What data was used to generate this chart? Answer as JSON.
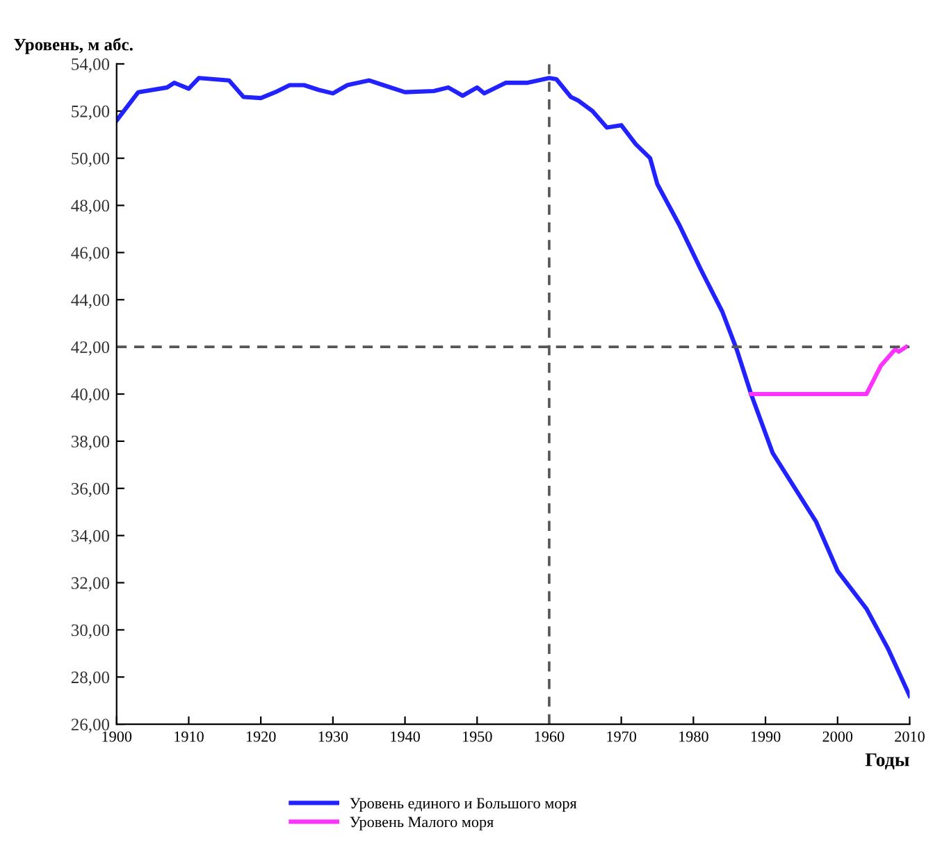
{
  "chart_data": {
    "type": "line",
    "ylabel": "Уровень, м абс.",
    "xlabel": "Годы",
    "xlim": [
      1900,
      2010
    ],
    "xticks": [
      1900,
      1910,
      1920,
      1930,
      1940,
      1950,
      1960,
      1970,
      1980,
      1990,
      2000,
      2010
    ],
    "ylim": [
      26,
      54
    ],
    "yticks": [
      {
        "value": 26,
        "label": "26,00"
      },
      {
        "value": 28,
        "label": "28,00"
      },
      {
        "value": 30,
        "label": "30,00"
      },
      {
        "value": 32,
        "label": "32,00"
      },
      {
        "value": 34,
        "label": "34,00"
      },
      {
        "value": 36,
        "label": "36,00"
      },
      {
        "value": 38,
        "label": "38,00"
      },
      {
        "value": 40,
        "label": "40,00"
      },
      {
        "value": 42,
        "label": "42,00"
      },
      {
        "value": 44,
        "label": "44,00"
      },
      {
        "value": 46,
        "label": "46,00"
      },
      {
        "value": 48,
        "label": "48,00"
      },
      {
        "value": 50,
        "label": "50,00"
      },
      {
        "value": 52,
        "label": "52,00"
      },
      {
        "value": 54,
        "label": "54,00"
      }
    ],
    "grid": false,
    "legend": "bottom",
    "marker": "none",
    "line_style": "solid",
    "ref_lines": [
      {
        "axis": "y",
        "value": 42,
        "color": "#555555",
        "line_style": "dashed"
      },
      {
        "axis": "x",
        "value": 1960,
        "color": "#555555",
        "line_style": "dashed"
      }
    ],
    "series": [
      {
        "name": "Уровень единого и Большого моря",
        "color": "#2222ff",
        "x": [
          1900,
          1903,
          1907,
          1908,
          1910,
          1911.4,
          1915.6,
          1917.6,
          1920,
          1922,
          1924,
          1926,
          1928,
          1930,
          1932,
          1935,
          1937,
          1940,
          1944,
          1946,
          1948,
          1950,
          1951,
          1954,
          1957,
          1960,
          1961,
          1963,
          1964,
          1966,
          1968,
          1970,
          1972,
          1974,
          1975,
          1978,
          1981,
          1984,
          1986,
          1988,
          1991,
          1997,
          2000,
          2004,
          2007,
          2010
        ],
        "values": [
          51.6,
          52.8,
          53.0,
          53.2,
          52.95,
          53.4,
          53.3,
          52.6,
          52.55,
          52.8,
          53.1,
          53.1,
          52.9,
          52.75,
          53.1,
          53.3,
          53.1,
          52.8,
          52.85,
          53.0,
          52.65,
          53.0,
          52.75,
          53.2,
          53.2,
          53.4,
          53.35,
          52.6,
          52.45,
          52.0,
          51.3,
          51.4,
          50.6,
          50.0,
          48.9,
          47.2,
          45.3,
          43.5,
          41.9,
          40.0,
          37.5,
          34.6,
          32.5,
          30.9,
          29.2,
          27.2
        ]
      },
      {
        "name": "Уровень Малого моря",
        "color": "#ff33ff",
        "x": [
          1988,
          2004,
          2006,
          2008,
          2008.5,
          2009.5
        ],
        "values": [
          40.0,
          40.0,
          41.2,
          41.9,
          41.8,
          42.0
        ]
      }
    ]
  }
}
